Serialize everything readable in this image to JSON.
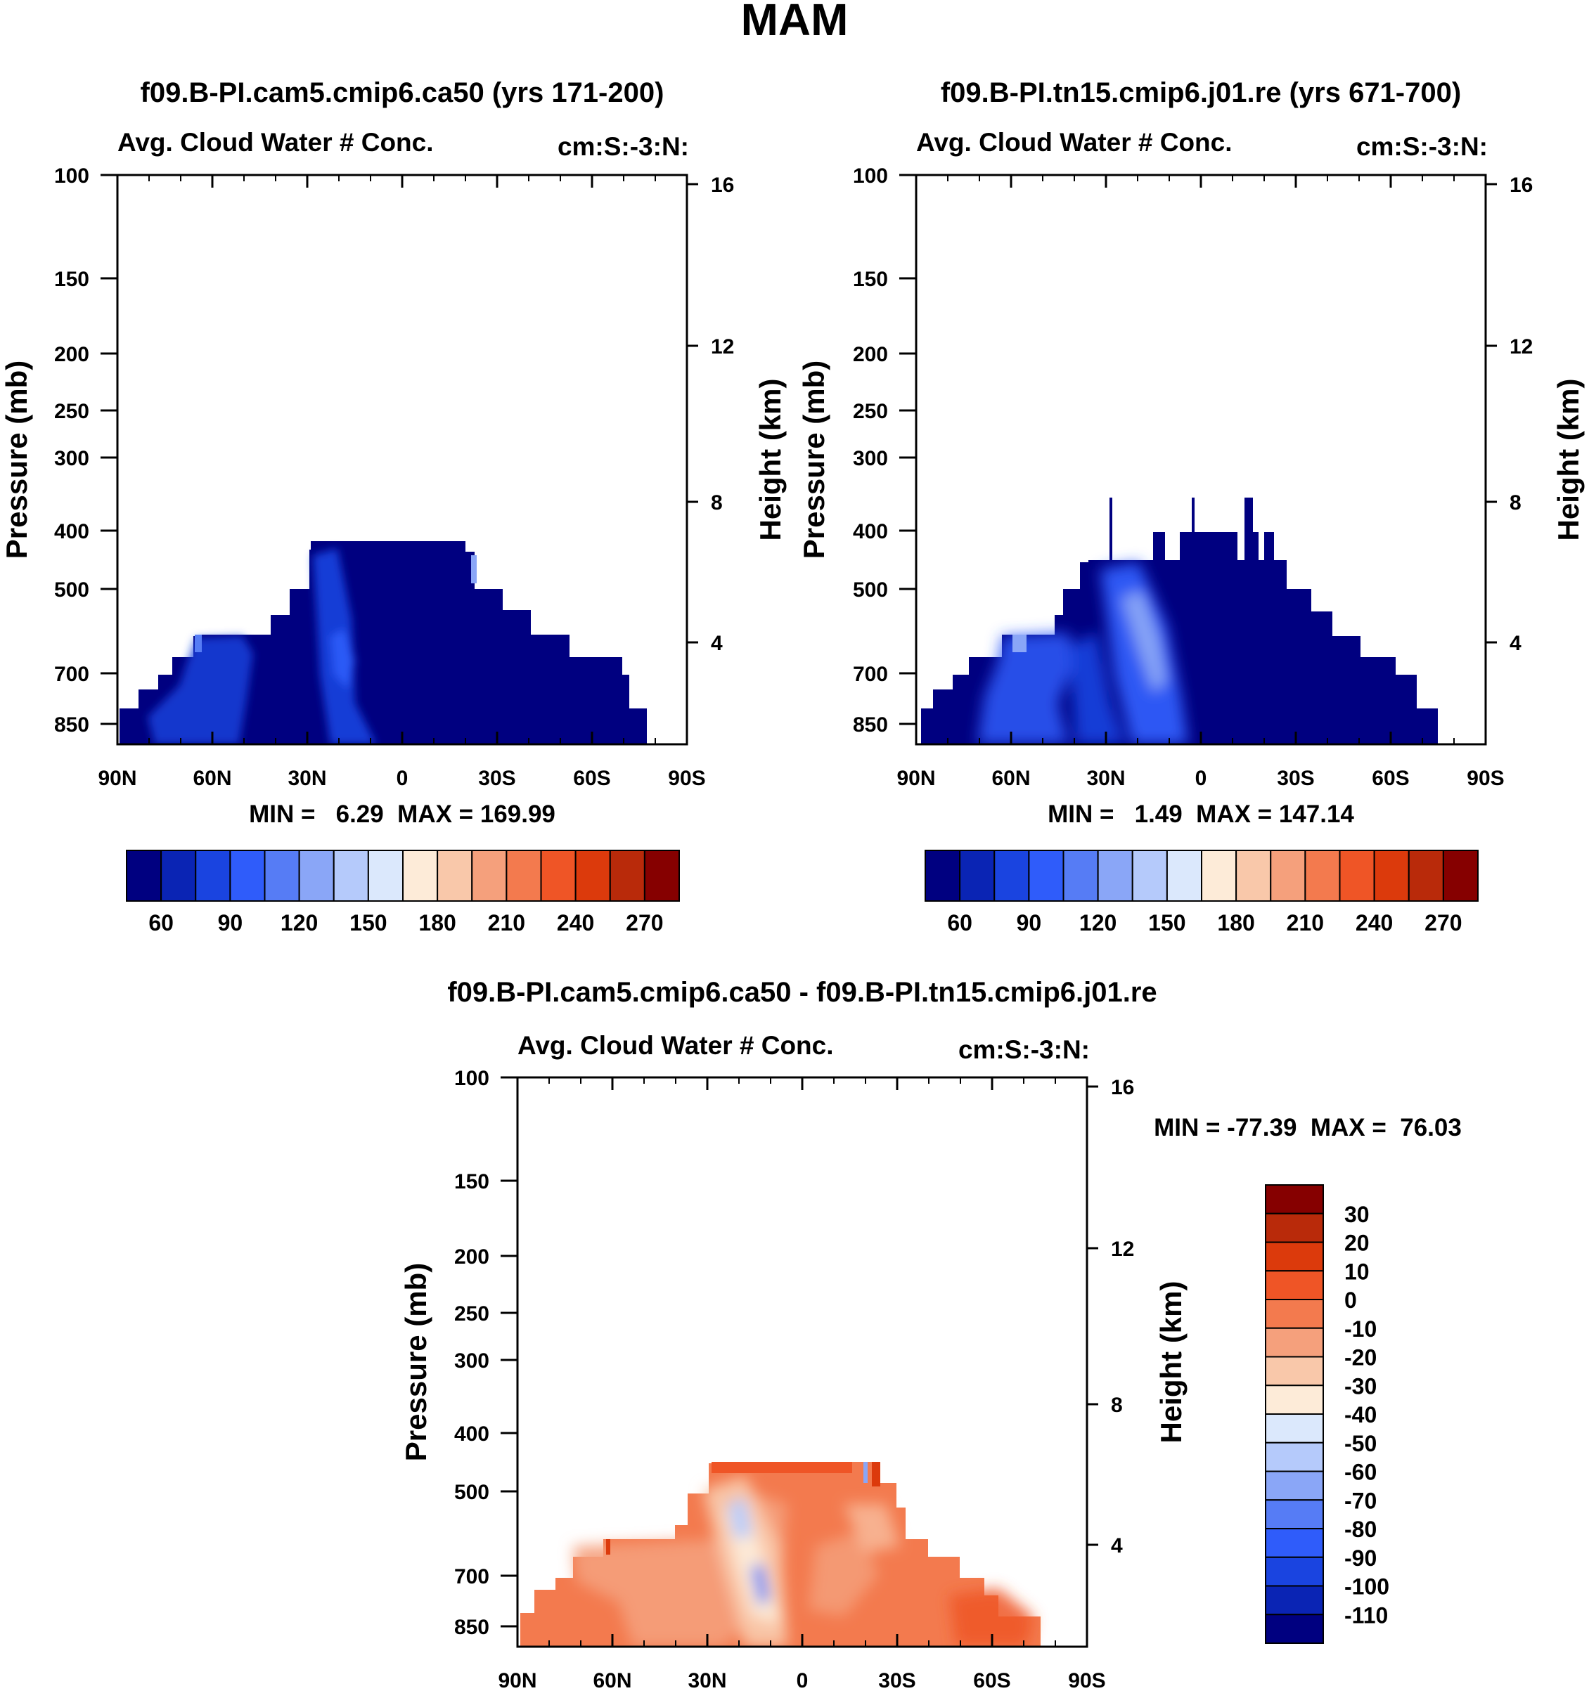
{
  "figure_title": "MAM",
  "chart_data": [
    {
      "type": "contour",
      "title": "f09.B-PI.cam5.cmip6.ca50 (yrs 171-200)",
      "left_string": "Avg. Cloud Water # Conc.",
      "right_string": "cm:S:-3:N:",
      "ylabel": "Pressure (mb)",
      "y2label": "Height (km)",
      "x_ticks": [
        "90N",
        "60N",
        "30N",
        "0",
        "30S",
        "60S",
        "90S"
      ],
      "y_ticks": [
        "100",
        "150",
        "200",
        "250",
        "300",
        "400",
        "500",
        "700",
        "850"
      ],
      "y2_ticks": [
        "16",
        "12",
        "8",
        "4"
      ],
      "min_max_text": "MIN =   6.29  MAX = 169.99",
      "colorbar_labels": [
        "60",
        "90",
        "120",
        "150",
        "180",
        "210",
        "240",
        "270"
      ],
      "colorbar_colors": [
        "#000080",
        "#0a24b4",
        "#1a44e0",
        "#2f5cfa",
        "#567cf5",
        "#8aa6f7",
        "#b5cafb",
        "#dbe8fc",
        "#fdebd8",
        "#f9c8aa",
        "#f5a07c",
        "#f37a4e",
        "#ef5526",
        "#dc3a0c",
        "#b92a0a",
        "#860000"
      ]
    },
    {
      "type": "contour",
      "title": "f09.B-PI.tn15.cmip6.j01.re (yrs 671-700)",
      "left_string": "Avg. Cloud Water # Conc.",
      "right_string": "cm:S:-3:N:",
      "ylabel": "Pressure (mb)",
      "y2label": "Height (km)",
      "x_ticks": [
        "90N",
        "60N",
        "30N",
        "0",
        "30S",
        "60S",
        "90S"
      ],
      "y_ticks": [
        "100",
        "150",
        "200",
        "250",
        "300",
        "400",
        "500",
        "700",
        "850"
      ],
      "y2_ticks": [
        "16",
        "12",
        "8",
        "4"
      ],
      "min_max_text": "MIN =   1.49  MAX = 147.14",
      "colorbar_labels": [
        "60",
        "90",
        "120",
        "150",
        "180",
        "210",
        "240",
        "270"
      ],
      "colorbar_colors": [
        "#000080",
        "#0a24b4",
        "#1a44e0",
        "#2f5cfa",
        "#567cf5",
        "#8aa6f7",
        "#b5cafb",
        "#dbe8fc",
        "#fdebd8",
        "#f9c8aa",
        "#f5a07c",
        "#f37a4e",
        "#ef5526",
        "#dc3a0c",
        "#b92a0a",
        "#860000"
      ]
    },
    {
      "type": "contour",
      "title": "f09.B-PI.cam5.cmip6.ca50 - f09.B-PI.tn15.cmip6.j01.re",
      "left_string": "Avg. Cloud Water # Conc.",
      "right_string": "cm:S:-3:N:",
      "ylabel": "Pressure (mb)",
      "y2label": "Height (km)",
      "x_ticks": [
        "90N",
        "60N",
        "30N",
        "0",
        "30S",
        "60S",
        "90S"
      ],
      "y_ticks": [
        "100",
        "150",
        "200",
        "250",
        "300",
        "400",
        "500",
        "700",
        "850"
      ],
      "y2_ticks": [
        "16",
        "12",
        "8",
        "4"
      ],
      "min_max_text": "MIN = -77.39  MAX =  76.03",
      "colorbar_labels": [
        "30",
        "20",
        "10",
        "0",
        "-10",
        "-20",
        "-30",
        "-40",
        "-50",
        "-60",
        "-70",
        "-80",
        "-90",
        "-100",
        "-110"
      ],
      "colorbar_colors": [
        "#860000",
        "#b92a0a",
        "#dc3a0c",
        "#ef5526",
        "#f37a4e",
        "#f5a07c",
        "#f9c8aa",
        "#fdebd8",
        "#dbe8fc",
        "#b5cafb",
        "#8aa6f7",
        "#567cf5",
        "#2f5cfa",
        "#1a44e0",
        "#0a24b4",
        "#000080"
      ]
    }
  ]
}
